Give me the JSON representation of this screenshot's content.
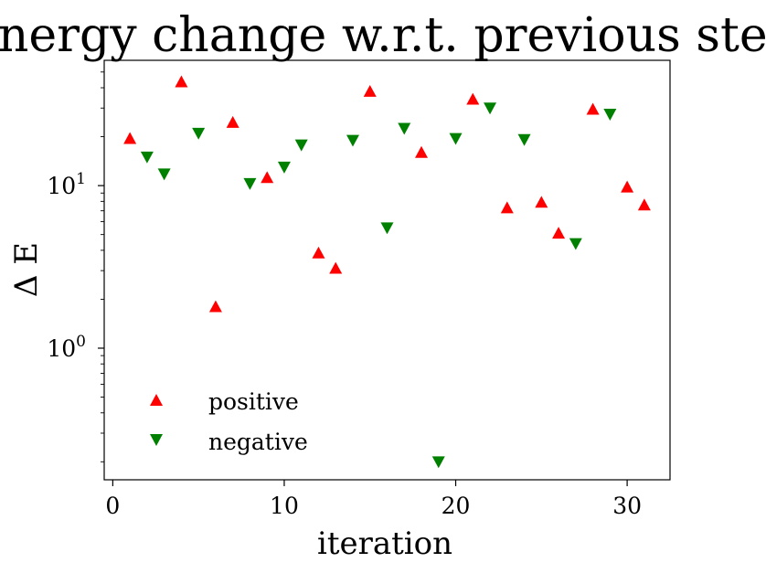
{
  "chart_data": {
    "type": "scatter",
    "title": "energy change w.r.t. previous step",
    "xlabel": "iteration",
    "ylabel": "Δ E",
    "yscale": "log",
    "xlim": [
      -0.5,
      32.5
    ],
    "ylim": [
      0.155,
      59
    ],
    "x_ticks": [
      {
        "value": 0,
        "label": "0"
      },
      {
        "value": 10,
        "label": "10"
      },
      {
        "value": 20,
        "label": "20"
      },
      {
        "value": 30,
        "label": "30"
      }
    ],
    "y_ticks": [
      {
        "value": 1,
        "label": "10",
        "exp": "0"
      },
      {
        "value": 10,
        "label": "10",
        "exp": "1"
      }
    ],
    "legend_position": "lower-left",
    "series": [
      {
        "name": "positive",
        "marker": "triangle-up",
        "color": "#ff0000",
        "points": [
          {
            "x": 1,
            "y": 19.5
          },
          {
            "x": 4,
            "y": 43.5
          },
          {
            "x": 6,
            "y": 1.8
          },
          {
            "x": 7,
            "y": 24.5
          },
          {
            "x": 9,
            "y": 11.2
          },
          {
            "x": 12,
            "y": 3.85
          },
          {
            "x": 13,
            "y": 3.1
          },
          {
            "x": 15,
            "y": 38.0
          },
          {
            "x": 18,
            "y": 16.0
          },
          {
            "x": 21,
            "y": 34.0
          },
          {
            "x": 23,
            "y": 7.3
          },
          {
            "x": 25,
            "y": 7.9
          },
          {
            "x": 26,
            "y": 5.1
          },
          {
            "x": 28,
            "y": 29.5
          },
          {
            "x": 30,
            "y": 9.8
          },
          {
            "x": 31,
            "y": 7.6
          }
        ]
      },
      {
        "name": "negative",
        "marker": "triangle-down",
        "color": "#008000",
        "points": [
          {
            "x": 2,
            "y": 15.0
          },
          {
            "x": 3,
            "y": 11.8
          },
          {
            "x": 5,
            "y": 21.0
          },
          {
            "x": 8,
            "y": 10.3
          },
          {
            "x": 10,
            "y": 13.0
          },
          {
            "x": 11,
            "y": 17.8
          },
          {
            "x": 14,
            "y": 19.0
          },
          {
            "x": 16,
            "y": 5.5
          },
          {
            "x": 17,
            "y": 22.5
          },
          {
            "x": 19,
            "y": 0.2
          },
          {
            "x": 20,
            "y": 19.5
          },
          {
            "x": 22,
            "y": 30.0
          },
          {
            "x": 24,
            "y": 19.2
          },
          {
            "x": 27,
            "y": 4.4
          },
          {
            "x": 29,
            "y": 27.5
          }
        ]
      }
    ]
  }
}
